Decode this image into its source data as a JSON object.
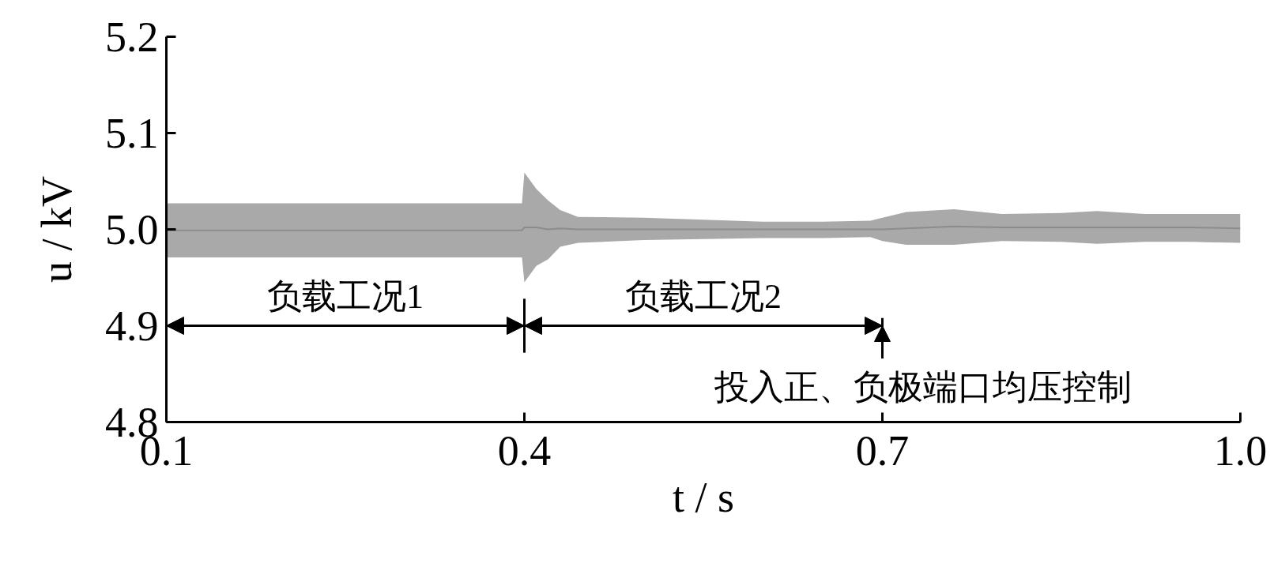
{
  "chart_data": {
    "type": "line",
    "xlabel": "t / s",
    "ylabel": "u / kV",
    "x": [
      0.1,
      0.39,
      0.398,
      0.4,
      0.41,
      0.42,
      0.43,
      0.445,
      0.5,
      0.55,
      0.6,
      0.65,
      0.69,
      0.7,
      0.72,
      0.76,
      0.8,
      0.85,
      0.88,
      0.92,
      0.96,
      1.0
    ],
    "series": [
      {
        "color": "#8c8c8c",
        "values": [
          4.999,
          4.999,
          4.999,
          5.002,
          5.002,
          5.0,
          5.001,
          5.0,
          5.0,
          5.0,
          5.0,
          5.0,
          5.0,
          5.0,
          5.001,
          5.003,
          5.002,
          5.002,
          5.002,
          5.002,
          5.002,
          5.001
        ],
        "lower": [
          4.971,
          4.971,
          4.971,
          4.945,
          4.962,
          4.969,
          4.982,
          4.986,
          4.989,
          4.99,
          4.991,
          4.991,
          4.992,
          4.988,
          4.984,
          4.984,
          4.988,
          4.987,
          4.985,
          4.987,
          4.987,
          4.986
        ],
        "upper": [
          5.027,
          5.027,
          5.027,
          5.059,
          5.042,
          5.03,
          5.02,
          5.013,
          5.012,
          5.01,
          5.008,
          5.008,
          5.009,
          5.012,
          5.018,
          5.021,
          5.016,
          5.017,
          5.019,
          5.016,
          5.016,
          5.016
        ]
      }
    ],
    "xlim": [
      0.1,
      1.0
    ],
    "ylim": [
      4.8,
      5.2
    ],
    "xticks": [
      0.1,
      0.4,
      0.7,
      {
        "value": 1,
        "label": "1.0"
      }
    ],
    "yticks": [
      4.8,
      4.9,
      {
        "value": 5,
        "label": "5.0"
      },
      5.1,
      5.2
    ],
    "grid": false,
    "annotations": [
      "负载工况1",
      "负载工况2"
    ],
    "ref_lines": [
      {
        "axis": "x",
        "value": 0.4,
        "color": "#000000"
      },
      {
        "axis": "x",
        "value": 0.7,
        "label": "投入正、负极端口均压控制",
        "color": "#000000"
      }
    ]
  }
}
